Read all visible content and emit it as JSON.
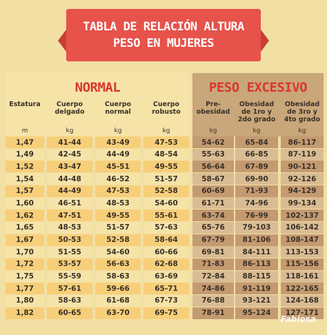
{
  "banner": {
    "line1": "TABLA DE RELACIÓN ALTURA",
    "line2": "PESO EN MUJERES"
  },
  "groups": {
    "normal": "NORMAL",
    "excesivo": "PESO EXCESIVO"
  },
  "columns": [
    {
      "label": "Estatura",
      "unit": "m"
    },
    {
      "label": "Cuerpo delgado",
      "unit": "kg"
    },
    {
      "label": "Cuerpo normal",
      "unit": "kg"
    },
    {
      "label": "Cuerpo robusto",
      "unit": "kg"
    },
    {
      "label": "Pre-obesidad",
      "unit": "kg"
    },
    {
      "label": "Obesidad de 1ro y 2do grado",
      "unit": "kg"
    },
    {
      "label": "Obesidad de 3ro y 4to grado",
      "unit": "kg"
    }
  ],
  "rows": [
    [
      "1,47",
      "41-44",
      "43-49",
      "47-53",
      "54-62",
      "65-84",
      "86-117"
    ],
    [
      "1,49",
      "42-45",
      "44-49",
      "48-54",
      "55-63",
      "66-85",
      "87-119"
    ],
    [
      "1,52",
      "43-47",
      "45-51",
      "49-55",
      "56-64",
      "67-89",
      "90-121"
    ],
    [
      "1,54",
      "44-48",
      "46-52",
      "51-57",
      "58-67",
      "69-90",
      "92-126"
    ],
    [
      "1,57",
      "44-49",
      "47-53",
      "52-58",
      "60-69",
      "71-93",
      "94-129"
    ],
    [
      "1,60",
      "46-51",
      "48-53",
      "54-60",
      "61-71",
      "74-96",
      "99-134"
    ],
    [
      "1,62",
      "47-51",
      "49-55",
      "55-61",
      "63-74",
      "76-99",
      "102-137"
    ],
    [
      "1,65",
      "48-53",
      "51-57",
      "57-63",
      "65-76",
      "79-103",
      "106-142"
    ],
    [
      "1,67",
      "50-53",
      "52-58",
      "58-64",
      "67-79",
      "81-106",
      "108-147"
    ],
    [
      "1,70",
      "51-55",
      "54-60",
      "60-66",
      "69-81",
      "84-111",
      "113-153"
    ],
    [
      "1,72",
      "53-57",
      "56-63",
      "62-68",
      "71-83",
      "86-113",
      "115-156"
    ],
    [
      "1,75",
      "55-59",
      "58-63",
      "63-69",
      "72-84",
      "88-115",
      "118-161"
    ],
    [
      "1,77",
      "57-61",
      "59-66",
      "65-71",
      "74-86",
      "91-119",
      "122-165"
    ],
    [
      "1,80",
      "58-63",
      "61-68",
      "67-73",
      "76-88",
      "93-121",
      "124-168"
    ],
    [
      "1,82",
      "60-65",
      "63-70",
      "69-75",
      "78-91",
      "95-124",
      "127-171"
    ]
  ],
  "logo": "Fabiosa"
}
